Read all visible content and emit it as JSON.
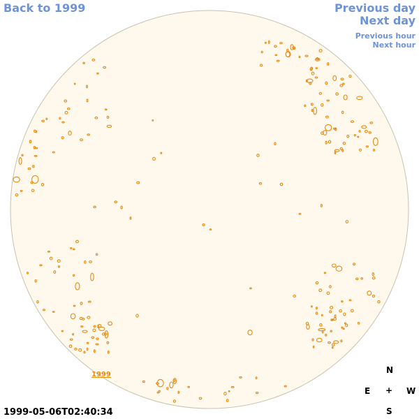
{
  "nav": {
    "back_label": "Back to 1999",
    "prev_day_label": "Previous day",
    "next_day_label": "Next day",
    "prev_hour_label": "Previous hour",
    "next_hour_label": "Next hour"
  },
  "image": {
    "year_tag": "1999",
    "timestamp": "1999-05-06T02:40:34"
  },
  "compass": {
    "north": "N",
    "east": "E",
    "center": "+",
    "west": "W",
    "south": "S"
  },
  "colors": {
    "disk_fill": "#fef9ec",
    "disk_edge": "#c8c2b0",
    "contour": "#e88a10",
    "nav_link": "#6f93d7"
  }
}
